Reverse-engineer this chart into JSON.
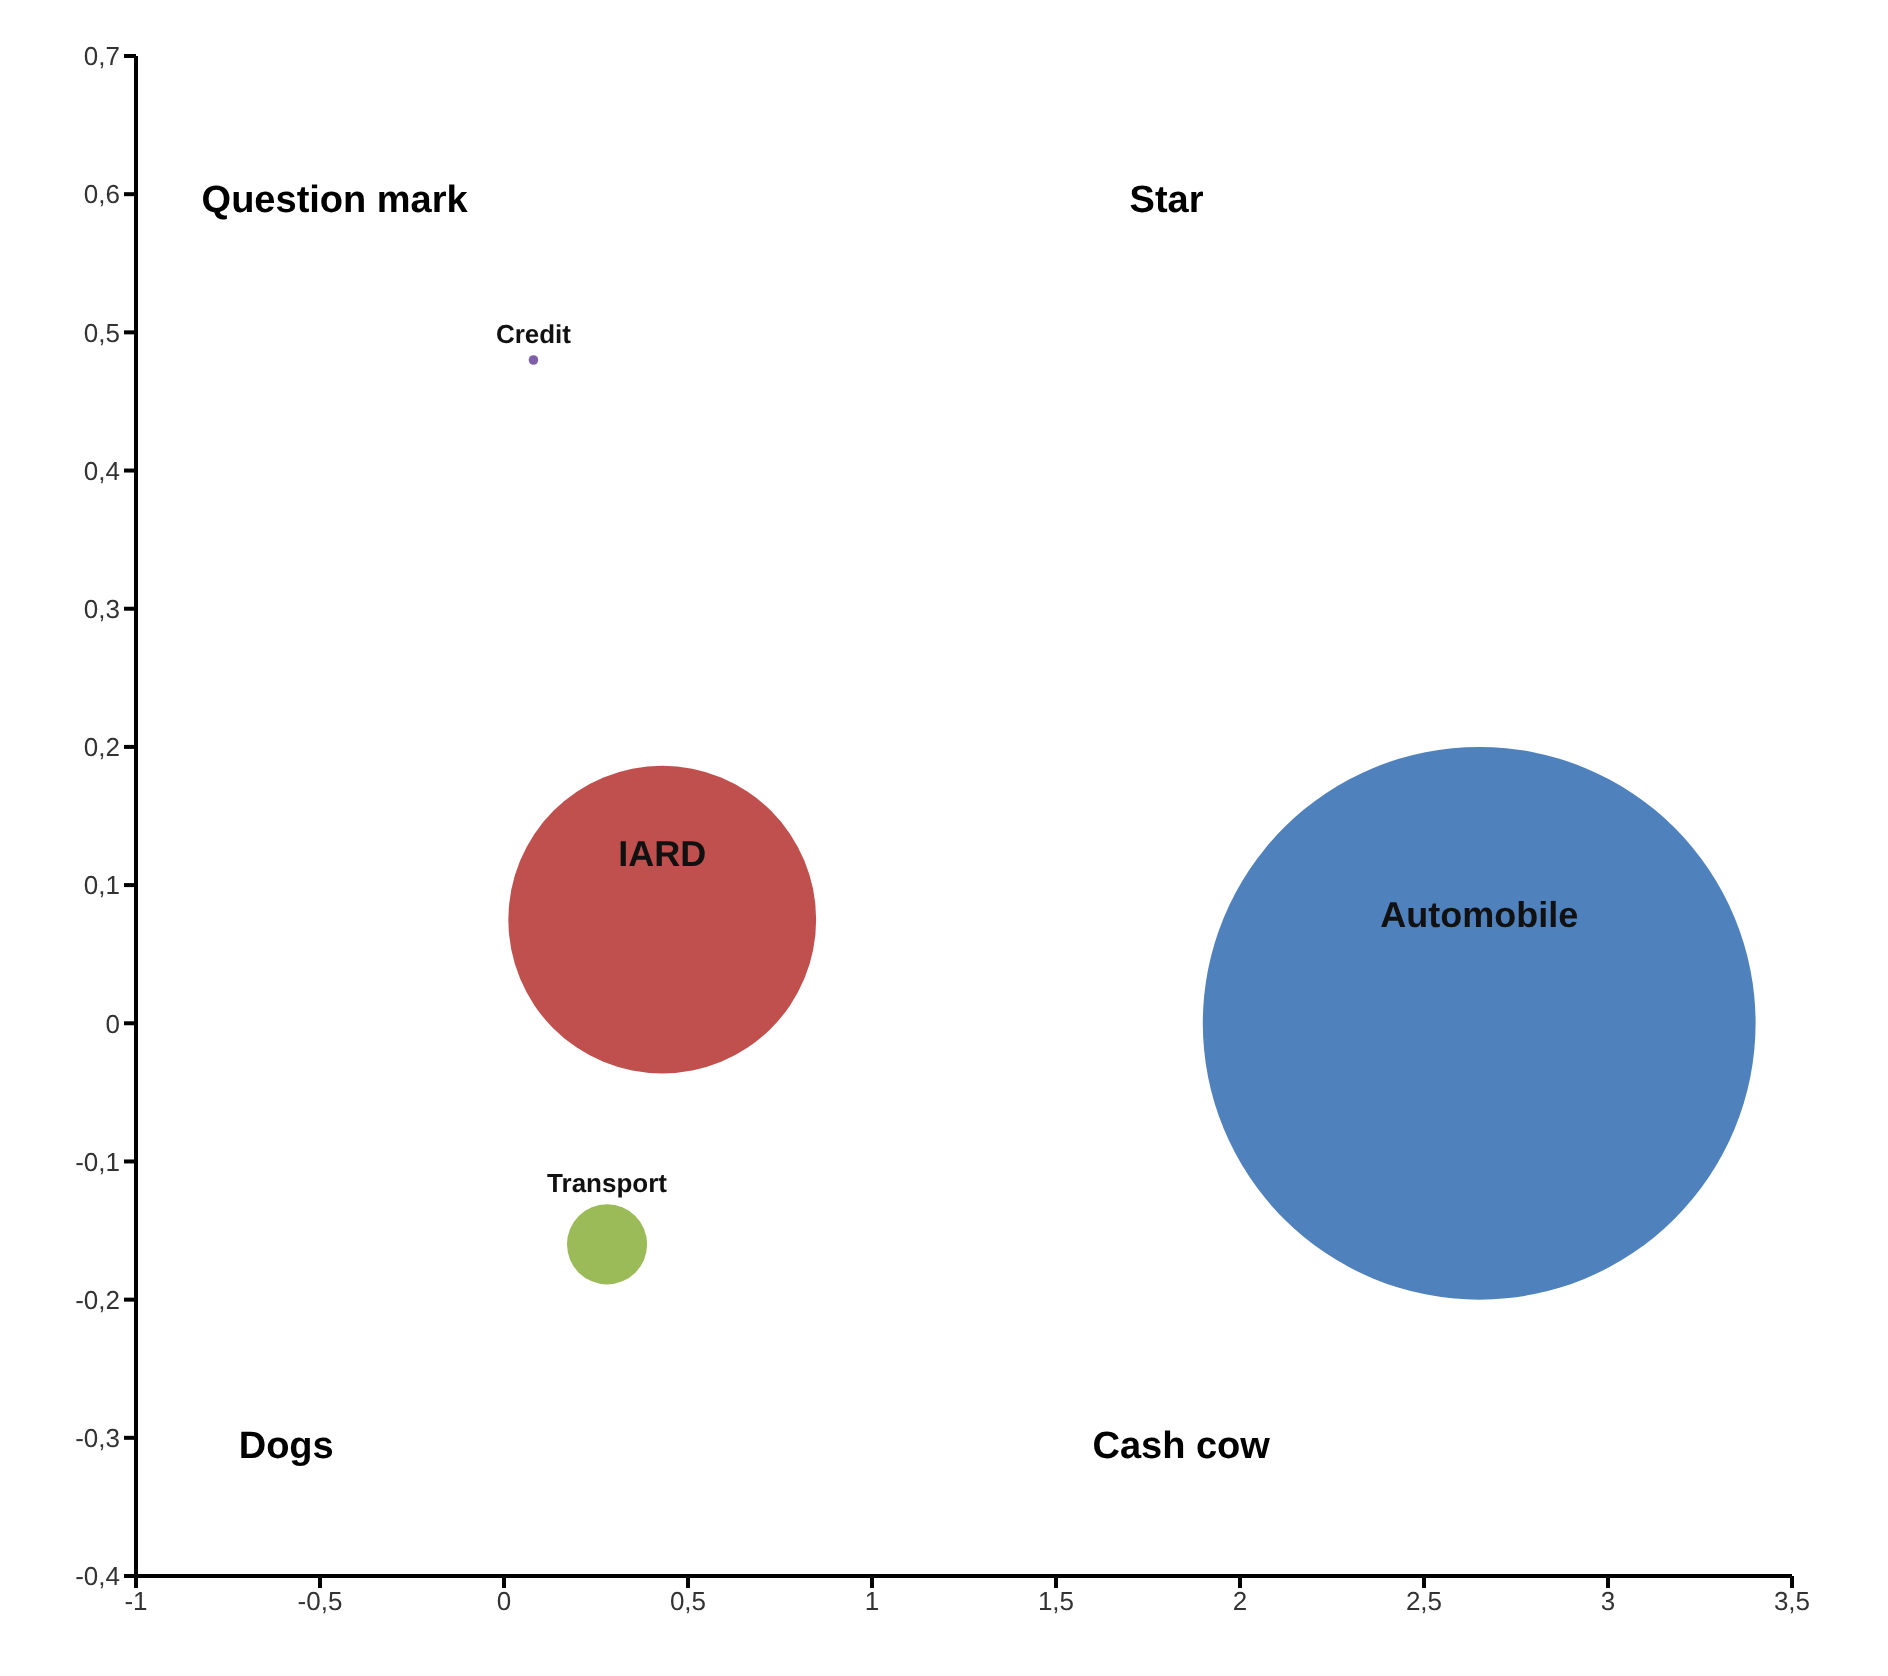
{
  "chart_data": {
    "type": "bubble",
    "xlim": [
      -1,
      3.5
    ],
    "ylim": [
      -0.4,
      0.7
    ],
    "xticks": [
      -1,
      {
        "value": -0.5,
        "label": "-0,5"
      },
      0,
      {
        "value": 0.5,
        "label": "0,5"
      },
      1,
      {
        "value": 1.5,
        "label": "1,5"
      },
      2,
      {
        "value": 2.5,
        "label": "2,5"
      },
      3,
      {
        "value": 3.5,
        "label": "3,5"
      }
    ],
    "yticks": [
      {
        "value": -0.4,
        "label": "-0,4"
      },
      {
        "value": -0.3,
        "label": "-0,3"
      },
      {
        "value": -0.2,
        "label": "-0,2"
      },
      {
        "value": -0.1,
        "label": "-0,1"
      },
      0,
      {
        "value": 0.1,
        "label": "0,1"
      },
      {
        "value": 0.2,
        "label": "0,2"
      },
      {
        "value": 0.3,
        "label": "0,3"
      },
      {
        "value": 0.4,
        "label": "0,4"
      },
      {
        "value": 0.5,
        "label": "0,5"
      },
      {
        "value": 0.6,
        "label": "0,6"
      },
      {
        "value": 0.7,
        "label": "0,7"
      }
    ],
    "grid": false,
    "legend": false,
    "series": [
      {
        "name": "Credit",
        "color": "#7f5fa8",
        "x": [
          0.08
        ],
        "values": [
          0.48
        ],
        "sizes": [
          0.0003
        ]
      },
      {
        "name": "IARD",
        "color": "#c0504d",
        "x": [
          0.43
        ],
        "values": [
          0.075
        ],
        "sizes": [
          0.31
        ]
      },
      {
        "name": "Transport",
        "color": "#9bbb59",
        "x": [
          0.28
        ],
        "values": [
          -0.16
        ],
        "sizes": [
          0.021
        ]
      },
      {
        "name": "Automobile",
        "color": "#4f81bd",
        "x": [
          2.65
        ],
        "values": [
          0
        ],
        "sizes": [
          1
        ]
      }
    ],
    "annotations": [
      "Question mark",
      "Star",
      "Dogs",
      "Cash cow"
    ]
  }
}
